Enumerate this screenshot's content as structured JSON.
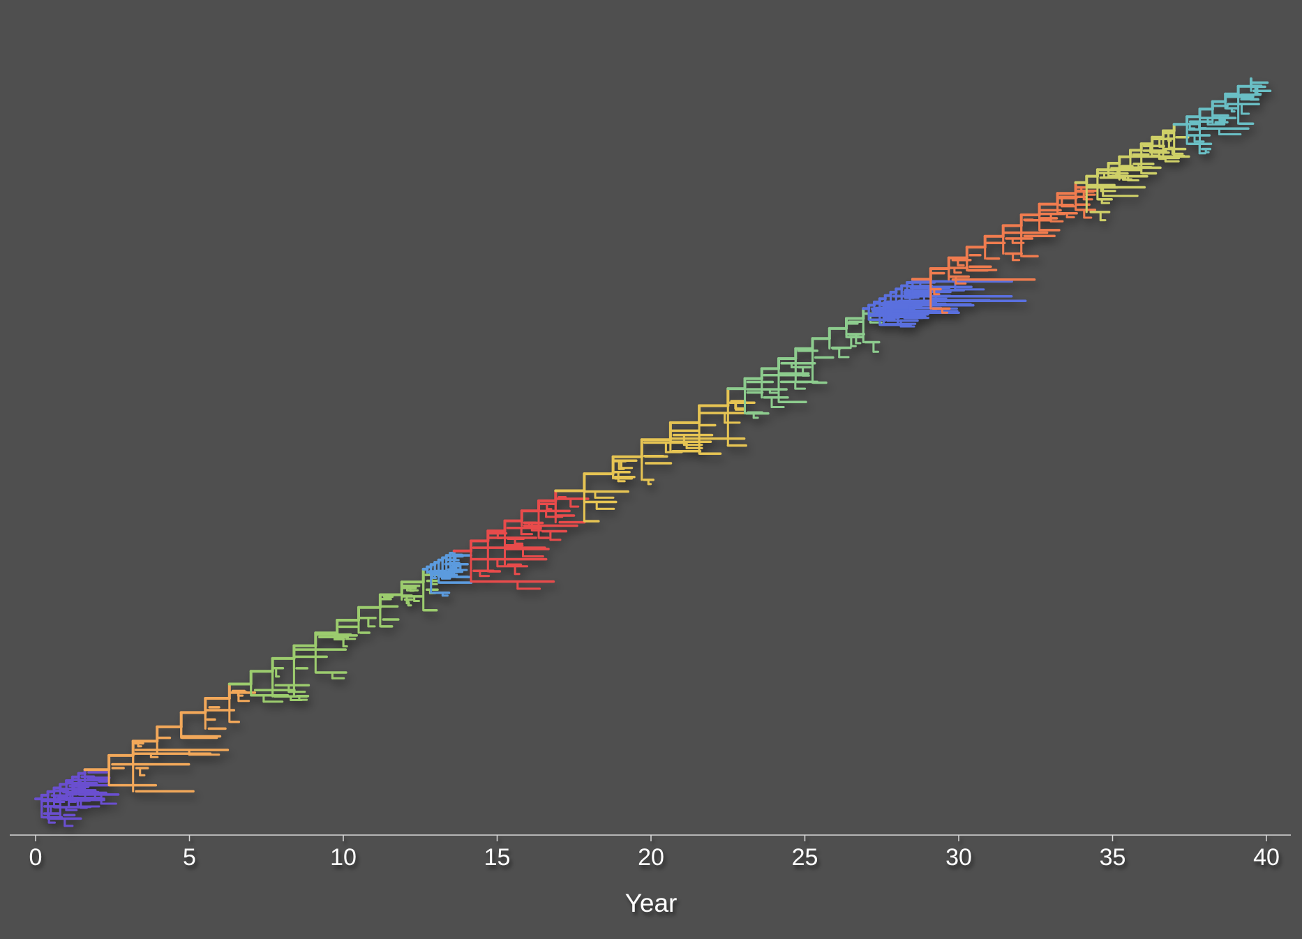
{
  "chart_data": {
    "type": "phylogenetic-tree",
    "xlabel": "Year",
    "xlim": [
      0,
      40
    ],
    "x_ticks": [
      {
        "value": 0,
        "label": "0"
      },
      {
        "value": 5,
        "label": "5"
      },
      {
        "value": 10,
        "label": "10"
      },
      {
        "value": 15,
        "label": "15"
      },
      {
        "value": 20,
        "label": "20"
      },
      {
        "value": 25,
        "label": "25"
      },
      {
        "value": 30,
        "label": "30"
      },
      {
        "value": 35,
        "label": "35"
      },
      {
        "value": 40,
        "label": "40"
      }
    ],
    "grid": false,
    "background": "#4f4f4f",
    "axis_color": "#d9d9d9",
    "text_color": "#ffffff",
    "clades": [
      {
        "color": "#6a4fd0",
        "start_year": 0.0,
        "end_year": 1.6,
        "tip_max_year": 3.0
      },
      {
        "color": "#f2a85a",
        "start_year": 1.6,
        "end_year": 6.3,
        "tip_max_year": 7.6
      },
      {
        "color": "#9ccc6e",
        "start_year": 6.3,
        "end_year": 12.6,
        "tip_max_year": 11.4
      },
      {
        "color": "#5b9bde",
        "start_year": 12.6,
        "end_year": 13.6,
        "tip_max_year": 14.2
      },
      {
        "color": "#e84c4c",
        "start_year": 13.6,
        "end_year": 16.9,
        "tip_max_year": 20.4
      },
      {
        "color": "#e6c453",
        "start_year": 16.9,
        "end_year": 22.5,
        "tip_max_year": 24.1
      },
      {
        "color": "#8dcc8e",
        "start_year": 22.5,
        "end_year": 26.9,
        "tip_max_year": 26.6
      },
      {
        "color": "#5a6fde",
        "start_year": 26.9,
        "end_year": 28.5,
        "tip_max_year": 32.6
      },
      {
        "color": "#f07c50",
        "start_year": 28.5,
        "end_year": 33.8,
        "tip_max_year": 34.4
      },
      {
        "color": "#cfd067",
        "start_year": 33.8,
        "end_year": 37.0,
        "tip_max_year": 37.5
      },
      {
        "color": "#6bbfc5",
        "start_year": 37.0,
        "end_year": 39.5,
        "tip_max_year": 40.0
      }
    ]
  }
}
